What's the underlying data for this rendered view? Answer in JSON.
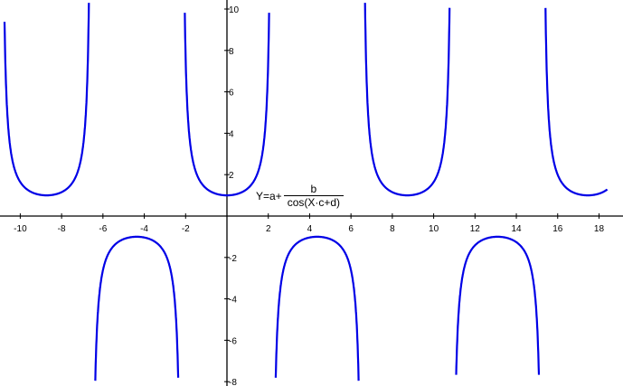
{
  "chart_data": {
    "type": "line",
    "title": "",
    "formula": {
      "prefix": "Y=a+",
      "numerator": "b",
      "denominator": "cos(X·c+d)"
    },
    "function": "y = a + b / cos(x*c + d)",
    "params": {
      "a": 0,
      "b": 1,
      "c": 0.72,
      "d": 0
    },
    "x_range": [
      -10.76,
      18.4
    ],
    "xlim": [
      -10.9,
      19.2
    ],
    "ylim": [
      -8.1,
      10.5
    ],
    "x_ticks": [
      -10,
      -8,
      -6,
      -4,
      -2,
      2,
      4,
      6,
      8,
      10,
      12,
      14,
      16,
      18
    ],
    "y_ticks": [
      -8,
      -6,
      -4,
      -2,
      2,
      4,
      6,
      8,
      10
    ],
    "grid": false,
    "line_color": "#0000e6",
    "axis_color": "#000000"
  }
}
